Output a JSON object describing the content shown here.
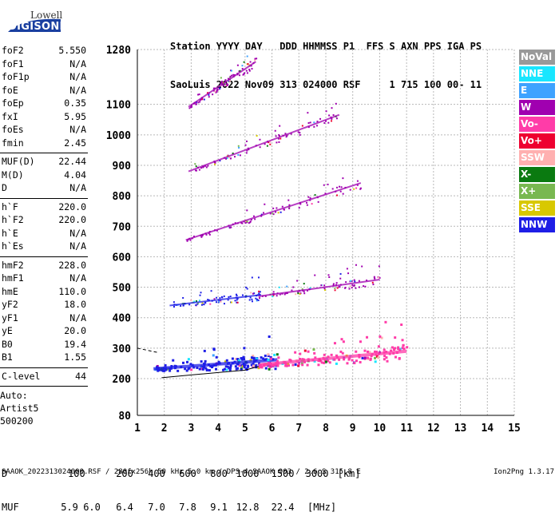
{
  "logo": {
    "line1": "Lowell",
    "line2": "DIGISONDE"
  },
  "header": {
    "line1": "Station YYYY DAY   DDD HHMMSS P1  FFS S AXN PPS IGA PS",
    "line2": "SaoLuis 2022 Nov09 313 024000 RSF     1 715 100 00- 11"
  },
  "params": [
    {
      "name": "foF2",
      "value": "5.550"
    },
    {
      "name": "foF1",
      "value": "N/A"
    },
    {
      "name": "foF1p",
      "value": "N/A"
    },
    {
      "name": "foE",
      "value": "N/A"
    },
    {
      "name": "foEp",
      "value": "0.35"
    },
    {
      "name": "fxI",
      "value": "5.95"
    },
    {
      "name": "foEs",
      "value": "N/A"
    },
    {
      "name": "fmin",
      "value": "2.45"
    },
    {
      "name": "MUF(D)",
      "value": "22.44",
      "sep_before": true
    },
    {
      "name": "M(D)",
      "value": "4.04"
    },
    {
      "name": "D",
      "value": "N/A"
    },
    {
      "name": "h`F",
      "value": "220.0",
      "sep_before": true
    },
    {
      "name": "h`F2",
      "value": "220.0"
    },
    {
      "name": "h`E",
      "value": "N/A"
    },
    {
      "name": "h`Es",
      "value": "N/A"
    },
    {
      "name": "hmF2",
      "value": "228.0",
      "sep_before": true
    },
    {
      "name": "hmF1",
      "value": "N/A"
    },
    {
      "name": "hmE",
      "value": "110.0"
    },
    {
      "name": "yF2",
      "value": "18.0"
    },
    {
      "name": "yF1",
      "value": "N/A"
    },
    {
      "name": "yE",
      "value": "20.0"
    },
    {
      "name": "B0",
      "value": "19.4"
    },
    {
      "name": "B1",
      "value": "1.55"
    },
    {
      "name": "C-level",
      "value": "44",
      "sep_before": true
    }
  ],
  "auto": {
    "line1": "Auto:",
    "line2": "Artist5",
    "line3": "500200"
  },
  "legend": [
    {
      "label": "NoVal",
      "color": "#999999"
    },
    {
      "label": "NNE",
      "color": "#19e6ff"
    },
    {
      "label": "E",
      "color": "#3ea2ff"
    },
    {
      "label": "W",
      "color": "#a000b0"
    },
    {
      "label": "Vo-",
      "color": "#ff3ca8"
    },
    {
      "label": "Vo+",
      "color": "#ee0030"
    },
    {
      "label": "SSW",
      "color": "#ffb0b0"
    },
    {
      "label": "X-",
      "color": "#0a7a10"
    },
    {
      "label": "X+",
      "color": "#78b850"
    },
    {
      "label": "SSE",
      "color": "#d8c800"
    },
    {
      "label": "NNW",
      "color": "#1e1ee6"
    }
  ],
  "footer": {
    "d_label": "D",
    "d_values": [
      "100",
      "200",
      "400",
      "600",
      "800",
      "1000",
      "1500",
      "3000",
      "[km]"
    ],
    "muf_label": "MUF",
    "muf_values": [
      "5.9",
      "6.0",
      "6.4",
      "7.0",
      "7.8",
      "9.1",
      "12.8",
      "22.4",
      "[MHz]"
    ],
    "bottom": "SAAOK_2022313024000.RSF / 280fx256h 50 kHz 5.0 km / DPS-4 SAAOK 903 / 2.6 S 315.8 E",
    "version": "Ion2Png 1.3.17"
  },
  "chart_data": {
    "type": "scatter",
    "xlabel": "",
    "ylabel": "",
    "xlim": [
      1,
      15
    ],
    "ylim": [
      80,
      1280
    ],
    "x_ticks": [
      "1",
      "2",
      "3",
      "4",
      "5",
      "6",
      "7",
      "8",
      "9",
      "10",
      "11",
      "12",
      "13",
      "14",
      "15"
    ],
    "y_ticks": [
      "80",
      "200",
      "300",
      "400",
      "500",
      "600",
      "700",
      "800",
      "900",
      "1000",
      "1100",
      "1280"
    ],
    "grid": true,
    "legend_position": "right",
    "traces": [
      {
        "x_start": 1.6,
        "x_end": 6.2,
        "h_start": 232,
        "h_end": 262,
        "color": "#1e1ee6",
        "hops": 1
      },
      {
        "x_start": 5.5,
        "x_end": 11.0,
        "h_start": 245,
        "h_end": 290,
        "color": "#ff3ca8",
        "hops": 1
      },
      {
        "x_start": 2.2,
        "x_end": 5.6,
        "h_start": 440,
        "h_end": 475,
        "color": "#1e1ee6",
        "hops": 2
      },
      {
        "x_start": 5.5,
        "x_end": 10.0,
        "h_start": 470,
        "h_end": 525,
        "color": "#a000b0",
        "hops": 2
      },
      {
        "x_start": 2.8,
        "x_end": 9.3,
        "h_start": 655,
        "h_end": 842,
        "color": "#a000b0",
        "hops": 3
      },
      {
        "x_start": 2.9,
        "x_end": 8.5,
        "h_start": 880,
        "h_end": 1066,
        "color": "#a000b0",
        "hops": 4
      },
      {
        "x_start": 2.9,
        "x_end": 5.4,
        "h_start": 1092,
        "h_end": 1240,
        "color": "#a000b0",
        "hops": 5
      }
    ],
    "fitted_profile": {
      "x": [
        1.9,
        3.0,
        4.0,
        5.0,
        5.5
      ],
      "h": [
        203,
        212,
        220,
        228,
        240
      ],
      "color": "#000000"
    }
  }
}
